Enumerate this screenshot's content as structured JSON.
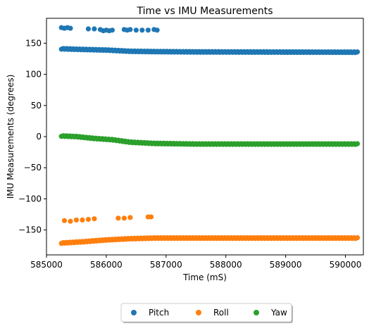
{
  "chart_data": {
    "type": "scatter",
    "title": "Time vs IMU Measurements",
    "xlabel": "Time (mS)",
    "ylabel": "IMU Measurements (degrees)",
    "xlim": [
      585000,
      590300
    ],
    "ylim": [
      -190,
      190
    ],
    "xticks": [
      585000,
      586000,
      587000,
      588000,
      589000,
      590000
    ],
    "yticks": [
      -150,
      -100,
      -50,
      0,
      50,
      100,
      150
    ],
    "grid": false,
    "legend": "bottom-center, outside, 3 columns",
    "series": [
      {
        "name": "Pitch",
        "color": "#1f77b4",
        "x_start": 585250,
        "x_end": 590200,
        "main_trend": [
          [
            585250,
            141
          ],
          [
            585600,
            140
          ],
          [
            586000,
            139
          ],
          [
            586400,
            137
          ],
          [
            586800,
            136.5
          ],
          [
            587500,
            136
          ],
          [
            590200,
            135.5
          ]
        ],
        "outliers": [
          [
            585250,
            175
          ],
          [
            585300,
            174
          ],
          [
            585350,
            175
          ],
          [
            585400,
            174
          ],
          [
            585700,
            173
          ],
          [
            585800,
            173
          ],
          [
            585900,
            172
          ],
          [
            585950,
            170
          ],
          [
            586000,
            171
          ],
          [
            586050,
            170
          ],
          [
            586100,
            171
          ],
          [
            586300,
            172
          ],
          [
            586350,
            171
          ],
          [
            586400,
            172
          ],
          [
            586500,
            171
          ],
          [
            586600,
            171
          ],
          [
            586700,
            171
          ],
          [
            586800,
            172
          ],
          [
            586850,
            171
          ]
        ]
      },
      {
        "name": "Roll",
        "color": "#ff7f0e",
        "x_start": 585250,
        "x_end": 590200,
        "main_trend": [
          [
            585250,
            -171
          ],
          [
            585600,
            -169
          ],
          [
            586000,
            -166
          ],
          [
            586400,
            -164
          ],
          [
            586800,
            -163
          ],
          [
            590200,
            -163
          ]
        ],
        "outliers": [
          [
            585300,
            -135
          ],
          [
            585400,
            -136
          ],
          [
            585500,
            -134
          ],
          [
            585600,
            -134
          ],
          [
            585700,
            -133
          ],
          [
            585800,
            -132
          ],
          [
            586200,
            -131
          ],
          [
            586300,
            -131
          ],
          [
            586400,
            -130
          ],
          [
            586700,
            -129
          ],
          [
            586750,
            -129
          ]
        ]
      },
      {
        "name": "Yaw",
        "color": "#2ca02c",
        "x_start": 585250,
        "x_end": 590200,
        "main_trend": [
          [
            585250,
            1
          ],
          [
            585500,
            0
          ],
          [
            585800,
            -3
          ],
          [
            586100,
            -5
          ],
          [
            586400,
            -9
          ],
          [
            586800,
            -11
          ],
          [
            587500,
            -12
          ],
          [
            590200,
            -12
          ]
        ],
        "outliers": []
      }
    ]
  }
}
